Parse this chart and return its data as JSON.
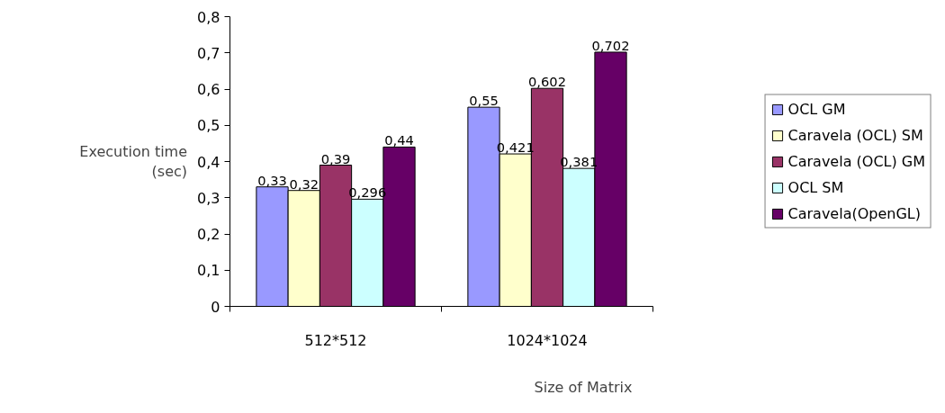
{
  "chart_data": {
    "type": "bar",
    "xlabel": "Size of Matrix",
    "ylabel": "Execution time\n(sec)",
    "categories": [
      "512*512",
      "1024*1024"
    ],
    "series": [
      {
        "name": "OCL GM",
        "color": "#9999ff",
        "values": [
          0.33,
          0.55
        ],
        "value_labels": [
          "0,33",
          "0,55"
        ]
      },
      {
        "name": "Caravela (OCL) SM",
        "color": "#ffffcc",
        "values": [
          0.32,
          0.421
        ],
        "value_labels": [
          "0,32",
          "0,421"
        ]
      },
      {
        "name": "Caravela (OCL) GM",
        "color": "#993366",
        "values": [
          0.39,
          0.602
        ],
        "value_labels": [
          "0,39",
          "0,602"
        ]
      },
      {
        "name": "OCL SM",
        "color": "#ccffff",
        "values": [
          0.296,
          0.381
        ],
        "value_labels": [
          "0,296",
          "0,381"
        ]
      },
      {
        "name": "Caravela(OpenGL)",
        "color": "#660066",
        "values": [
          0.44,
          0.702
        ],
        "value_labels": [
          "0,44",
          "0,702"
        ]
      }
    ],
    "ylim": [
      0,
      0.8
    ],
    "yticks": [
      0,
      {
        "value": 0.1,
        "label": "0,1"
      },
      {
        "value": 0.2,
        "label": "0,2"
      },
      {
        "value": 0.3,
        "label": "0,3"
      },
      {
        "value": 0.4,
        "label": "0,4"
      },
      {
        "value": 0.5,
        "label": "0,5"
      },
      {
        "value": 0.6,
        "label": "0,6"
      },
      {
        "value": 0.7,
        "label": "0,7"
      },
      {
        "value": 0.8,
        "label": "0,8"
      }
    ],
    "grid": false,
    "legend": "right"
  }
}
